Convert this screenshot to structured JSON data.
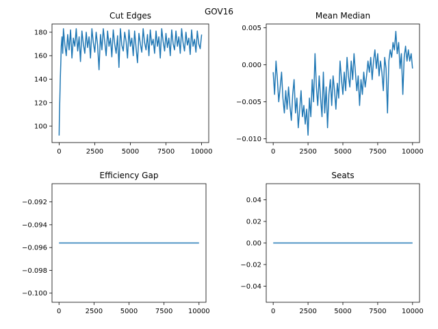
{
  "figure": {
    "suptitle": "GOV16",
    "line_color": "#1f77b4"
  },
  "chart_data": [
    {
      "type": "line",
      "title": "Cut Edges",
      "xlim": [
        -500,
        10500
      ],
      "ylim": [
        86,
        187
      ],
      "xticks": [
        0,
        2500,
        5000,
        7500,
        10000
      ],
      "xtick_labels": [
        "0",
        "2500",
        "5000",
        "7500",
        "10000"
      ],
      "yticks": [
        100,
        120,
        140,
        160,
        180
      ],
      "ytick_labels": [
        "100",
        "120",
        "140",
        "160",
        "180"
      ],
      "series": [
        {
          "x": [
            0,
            20,
            50,
            80,
            120,
            150,
            200,
            250,
            300,
            400,
            500,
            600,
            700,
            800,
            900,
            1000,
            1100,
            1200,
            1300,
            1400,
            1500,
            1600,
            1700,
            1800,
            1900,
            2000,
            2100,
            2200,
            2300,
            2400,
            2500,
            2600,
            2700,
            2800,
            2900,
            3000,
            3100,
            3200,
            3300,
            3400,
            3500,
            3600,
            3700,
            3800,
            3900,
            4000,
            4100,
            4200,
            4300,
            4400,
            4500,
            4600,
            4700,
            4800,
            4900,
            5000,
            5100,
            5200,
            5300,
            5400,
            5500,
            5600,
            5700,
            5800,
            5900,
            6000,
            6100,
            6200,
            6300,
            6400,
            6500,
            6600,
            6700,
            6800,
            6900,
            7000,
            7100,
            7200,
            7300,
            7400,
            7500,
            7600,
            7700,
            7800,
            7900,
            8000,
            8100,
            8200,
            8300,
            8400,
            8500,
            8600,
            8700,
            8800,
            8900,
            9000,
            9100,
            9200,
            9300,
            9400,
            9500,
            9600,
            9700,
            9800,
            9900,
            10000
          ],
          "y": [
            92,
            108,
            125,
            140,
            155,
            168,
            176,
            162,
            183,
            170,
            160,
            178,
            165,
            182,
            158,
            175,
            168,
            183,
            164,
            176,
            155,
            181,
            170,
            162,
            180,
            167,
            176,
            158,
            183,
            171,
            163,
            180,
            169,
            148,
            178,
            165,
            183,
            172,
            160,
            181,
            168,
            175,
            159,
            182,
            170,
            162,
            177,
            150,
            183,
            169,
            164,
            180,
            172,
            158,
            182,
            168,
            175,
            160,
            181,
            167,
            154,
            179,
            170,
            163,
            183,
            171,
            165,
            178,
            160,
            182,
            169,
            174,
            162,
            181,
            168,
            176,
            158,
            183,
            172,
            164,
            179,
            167,
            175,
            160,
            182,
            170,
            165,
            181,
            168,
            176,
            162,
            183,
            171,
            164,
            180,
            169,
            175,
            161,
            182,
            168,
            174,
            163,
            181,
            170,
            166,
            178
          ]
        }
      ]
    },
    {
      "type": "line",
      "title": "Mean Median",
      "xlim": [
        -500,
        10500
      ],
      "ylim": [
        -0.0105,
        0.0055
      ],
      "xticks": [
        0,
        2500,
        5000,
        7500,
        10000
      ],
      "xtick_labels": [
        "0",
        "2500",
        "5000",
        "7500",
        "10000"
      ],
      "yticks": [
        -0.01,
        -0.005,
        0.0,
        0.005
      ],
      "ytick_labels": [
        "−0.010",
        "−0.005",
        "0.000",
        "0.005"
      ],
      "series": [
        {
          "x": [
            0,
            100,
            200,
            300,
            400,
            500,
            600,
            700,
            800,
            900,
            1000,
            1100,
            1200,
            1300,
            1400,
            1500,
            1600,
            1700,
            1800,
            1900,
            2000,
            2100,
            2200,
            2300,
            2400,
            2500,
            2600,
            2700,
            2800,
            2900,
            3000,
            3100,
            3200,
            3300,
            3400,
            3500,
            3600,
            3700,
            3800,
            3900,
            4000,
            4100,
            4200,
            4300,
            4400,
            4500,
            4600,
            4700,
            4800,
            4900,
            5000,
            5100,
            5200,
            5300,
            5400,
            5500,
            5600,
            5700,
            5800,
            5900,
            6000,
            6100,
            6200,
            6300,
            6400,
            6500,
            6600,
            6700,
            6800,
            6900,
            7000,
            7100,
            7200,
            7300,
            7400,
            7500,
            7600,
            7700,
            7800,
            7900,
            8000,
            8100,
            8200,
            8300,
            8400,
            8500,
            8600,
            8700,
            8800,
            8900,
            9000,
            9100,
            9200,
            9300,
            9400,
            9500,
            9600,
            9700,
            9800,
            9900,
            10000
          ],
          "y": [
            -0.001,
            -0.004,
            0.0005,
            -0.002,
            -0.005,
            -0.003,
            -0.001,
            -0.0045,
            -0.0065,
            -0.0035,
            -0.006,
            -0.003,
            -0.0055,
            -0.0075,
            -0.004,
            -0.002,
            -0.0065,
            -0.0045,
            -0.0085,
            -0.006,
            -0.0035,
            -0.007,
            -0.0055,
            -0.008,
            -0.006,
            -0.0095,
            -0.0045,
            -0.007,
            -0.002,
            -0.005,
            0.0015,
            -0.003,
            -0.0055,
            -0.0015,
            -0.0045,
            -0.007,
            -0.001,
            -0.0065,
            -0.003,
            -0.0085,
            -0.004,
            -0.002,
            -0.0055,
            -0.0015,
            -0.0035,
            -0.006,
            -0.0025,
            -0.0045,
            0.0005,
            -0.002,
            -0.004,
            -0.001,
            -0.0035,
            0.001,
            -0.0015,
            -0.003,
            0.0005,
            -0.002,
            0.0015,
            -0.001,
            -0.0035,
            -0.0015,
            -0.0055,
            -0.002,
            -0.004,
            -0.001,
            -0.003,
            -0.0015,
            0.0005,
            -0.001,
            0.001,
            -0.002,
            0.0005,
            0.002,
            -0.0005,
            0.0015,
            -0.0015,
            0.0005,
            -0.001,
            -0.0035,
            0.001,
            -0.0005,
            -0.0065,
            0.0005,
            0.002,
            0.001,
            0.003,
            0.002,
            0.0045,
            0.0015,
            0.003,
            -0.0005,
            0.0015,
            -0.004,
            0.001,
            0.0025,
            0.0005,
            0.002,
            0.0005,
            0.0015,
            -0.0005
          ]
        }
      ]
    },
    {
      "type": "line",
      "title": "Efficiency Gap",
      "xlim": [
        -500,
        10500
      ],
      "ylim": [
        -0.1008,
        -0.0904
      ],
      "xticks": [
        0,
        2500,
        5000,
        7500,
        10000
      ],
      "xtick_labels": [
        "0",
        "2500",
        "5000",
        "7500",
        "10000"
      ],
      "yticks": [
        -0.092,
        -0.094,
        -0.096,
        -0.098,
        -0.1
      ],
      "ytick_labels": [
        "−0.092",
        "−0.094",
        "−0.096",
        "−0.098",
        "−0.100"
      ],
      "series": [
        {
          "x": [
            0,
            10000
          ],
          "y": [
            -0.0956,
            -0.0956
          ]
        }
      ]
    },
    {
      "type": "line",
      "title": "Seats",
      "xlim": [
        -500,
        10500
      ],
      "ylim": [
        -0.055,
        0.055
      ],
      "xticks": [
        0,
        2500,
        5000,
        7500,
        10000
      ],
      "xtick_labels": [
        "0",
        "2500",
        "5000",
        "7500",
        "10000"
      ],
      "yticks": [
        0.04,
        0.02,
        0.0,
        -0.02,
        -0.04
      ],
      "ytick_labels": [
        "0.04",
        "0.02",
        "0.00",
        "−0.02",
        "−0.04"
      ],
      "series": [
        {
          "x": [
            0,
            10000
          ],
          "y": [
            0.0,
            0.0
          ]
        }
      ]
    }
  ]
}
